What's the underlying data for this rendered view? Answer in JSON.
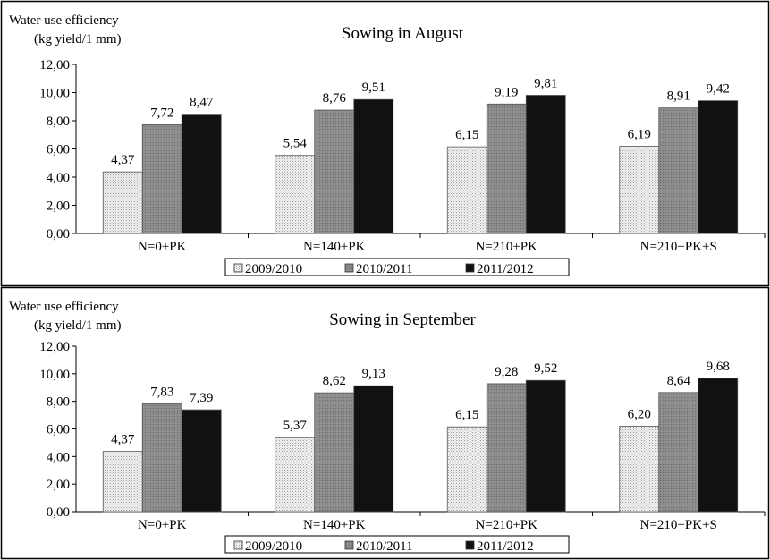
{
  "chart_data": [
    {
      "type": "bar",
      "title": "Sowing in August",
      "ylabel_line1": "Water use efficiency",
      "ylabel_line2": "(kg yield/1 mm)",
      "categories": [
        "N=0+PK",
        "N=140+PK",
        "N=210+PK",
        "N=210+PK+S"
      ],
      "ylim": [
        0,
        12
      ],
      "yticks": [
        "0,00",
        "2,00",
        "4,00",
        "6,00",
        "8,00",
        "10,00",
        "12,00"
      ],
      "grid": false,
      "legend_position": "bottom",
      "series": [
        {
          "name": "2009/2010",
          "values": [
            4.37,
            5.54,
            6.15,
            6.19
          ],
          "labels": [
            "4,37",
            "5,54",
            "6,15",
            "6,19"
          ],
          "color": "#e6e6e6"
        },
        {
          "name": "2010/2011",
          "values": [
            7.72,
            8.76,
            9.19,
            8.91
          ],
          "labels": [
            "7,72",
            "8,76",
            "9,19",
            "8,91"
          ],
          "color": "#8c8c8c"
        },
        {
          "name": "2011/2012",
          "values": [
            8.47,
            9.51,
            9.81,
            9.42
          ],
          "labels": [
            "8,47",
            "9,51",
            "9,81",
            "9,42"
          ],
          "color": "#111111"
        }
      ]
    },
    {
      "type": "bar",
      "title": "Sowing in September",
      "ylabel_line1": "Water use efficiency",
      "ylabel_line2": "(kg yield/1 mm)",
      "categories": [
        "N=0+PK",
        "N=140+PK",
        "N=210+PK",
        "N=210+PK+S"
      ],
      "ylim": [
        0,
        12
      ],
      "yticks": [
        "0,00",
        "2,00",
        "4,00",
        "6,00",
        "8,00",
        "10,00",
        "12,00"
      ],
      "grid": false,
      "legend_position": "bottom",
      "series": [
        {
          "name": "2009/2010",
          "values": [
            4.37,
            5.37,
            6.15,
            6.2
          ],
          "labels": [
            "4,37",
            "5,37",
            "6,15",
            "6,20"
          ],
          "color": "#e6e6e6"
        },
        {
          "name": "2010/2011",
          "values": [
            7.83,
            8.62,
            9.28,
            8.64
          ],
          "labels": [
            "7,83",
            "8,62",
            "9,28",
            "8,64"
          ],
          "color": "#8c8c8c"
        },
        {
          "name": "2011/2012",
          "values": [
            7.39,
            9.13,
            9.52,
            9.68
          ],
          "labels": [
            "7,39",
            "9,13",
            "9,52",
            "9,68"
          ],
          "color": "#111111"
        }
      ]
    }
  ]
}
